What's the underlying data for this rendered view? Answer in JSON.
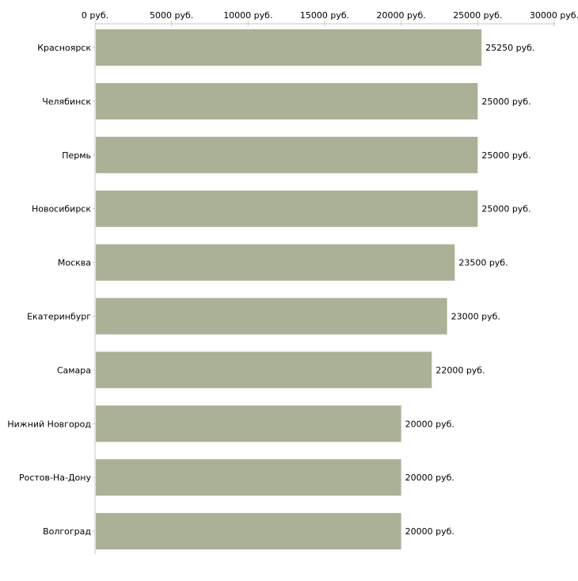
{
  "chart_data": {
    "type": "bar",
    "orientation": "horizontal",
    "title": "",
    "xlabel": "",
    "ylabel": "",
    "xlim": [
      0,
      30000
    ],
    "unit_suffix": " руб.",
    "ticks": [
      0,
      5000,
      10000,
      15000,
      20000,
      25000,
      30000
    ],
    "tick_labels": [
      "0 руб.",
      "5000 руб.",
      "10000 руб.",
      "15000 руб.",
      "20000 руб.",
      "25000 руб.",
      "30000 руб."
    ],
    "categories": [
      "Красноярск",
      "Челябинск",
      "Пермь",
      "Новосибирск",
      "Москва",
      "Екатеринбург",
      "Самара",
      "Нижний Новгород",
      "Ростов-На-Дону",
      "Волгоград"
    ],
    "values": [
      25250,
      25000,
      25000,
      25000,
      23500,
      23000,
      22000,
      20000,
      20000,
      20000
    ],
    "data_labels": [
      "25250 руб.",
      "25000 руб.",
      "25000 руб.",
      "25000 руб.",
      "23500 руб.",
      "23000 руб.",
      "22000 руб.",
      "20000 руб.",
      "20000 руб.",
      "20000 руб."
    ],
    "grid": false,
    "axis_position": "top",
    "colors": {
      "bar": "#abb196",
      "axis": "#c8c8c8",
      "tick": "#c8c8a8"
    }
  }
}
